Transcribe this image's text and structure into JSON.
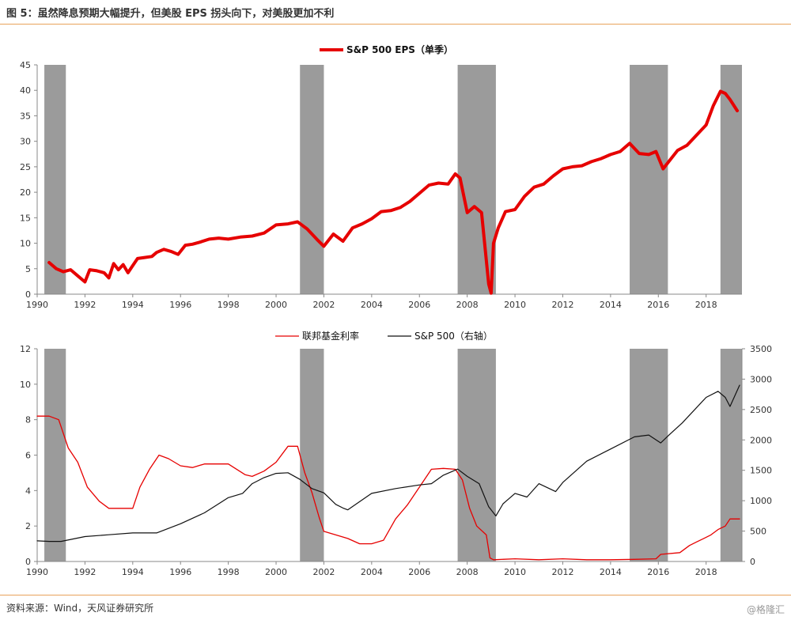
{
  "figure": {
    "title": "图 5：虽然降息预期大幅提升，但美股 EPS 拐头向下，对美股更加不利",
    "source": "资料来源：Wind，天风证券研究所",
    "watermark": "@格隆汇"
  },
  "colors": {
    "red": "#e60000",
    "black": "#111111",
    "shade": "#9b9b9b",
    "rule": "#e8a25a"
  },
  "chart_data": [
    {
      "type": "line",
      "title": "",
      "legend": [
        "S&P 500 EPS（单季）"
      ],
      "legend_position": "top-center",
      "xlim": [
        1990,
        2019.5
      ],
      "ylim": [
        0,
        45
      ],
      "x_ticks": [
        "1990",
        "1992",
        "1994",
        "1996",
        "1998",
        "2000",
        "2002",
        "2004",
        "2006",
        "2008",
        "2010",
        "2012",
        "2014",
        "2016",
        "2018"
      ],
      "y_ticks": [
        "0",
        "5",
        "10",
        "15",
        "20",
        "25",
        "30",
        "35",
        "40",
        "45"
      ],
      "shaded_periods": [
        [
          1990.3,
          1991.2
        ],
        [
          2001.0,
          2002.0
        ],
        [
          2007.6,
          2009.2
        ],
        [
          2014.8,
          2016.4
        ],
        [
          2018.6,
          2019.5
        ]
      ],
      "series": [
        {
          "name": "S&P 500 EPS（单季）",
          "x": [
            1990.5,
            1990.8,
            1991.1,
            1991.4,
            1991.7,
            1992.0,
            1992.2,
            1992.5,
            1992.8,
            1993.0,
            1993.2,
            1993.4,
            1993.6,
            1993.8,
            1994.0,
            1994.2,
            1994.5,
            1994.8,
            1995.0,
            1995.3,
            1995.6,
            1995.9,
            1996.2,
            1996.5,
            1996.8,
            1997.2,
            1997.6,
            1998.0,
            1998.5,
            1999.0,
            1999.5,
            2000.0,
            2000.5,
            2000.9,
            2001.3,
            2001.7,
            2002.0,
            2002.4,
            2002.8,
            2003.2,
            2003.6,
            2004.0,
            2004.4,
            2004.8,
            2005.2,
            2005.6,
            2006.0,
            2006.4,
            2006.8,
            2007.2,
            2007.5,
            2007.7,
            2008.0,
            2008.3,
            2008.6,
            2008.9,
            2009.0,
            2009.1,
            2009.3,
            2009.6,
            2010.0,
            2010.4,
            2010.8,
            2011.2,
            2011.6,
            2012.0,
            2012.4,
            2012.8,
            2013.2,
            2013.6,
            2014.0,
            2014.4,
            2014.8,
            2015.2,
            2015.6,
            2015.9,
            2016.2,
            2016.5,
            2016.8,
            2017.2,
            2017.6,
            2018.0,
            2018.3,
            2018.6,
            2018.8,
            2019.0,
            2019.3
          ],
          "values": [
            6.2,
            5.0,
            4.4,
            4.8,
            3.6,
            2.4,
            4.8,
            4.6,
            4.2,
            3.2,
            6.0,
            4.8,
            5.8,
            4.2,
            5.6,
            7.0,
            7.2,
            7.4,
            8.2,
            8.8,
            8.4,
            7.8,
            9.6,
            9.8,
            10.2,
            10.8,
            11.0,
            10.8,
            11.2,
            11.4,
            12.0,
            13.6,
            13.8,
            14.2,
            12.8,
            10.8,
            9.4,
            11.8,
            10.4,
            13.0,
            13.8,
            14.8,
            16.2,
            16.4,
            17.0,
            18.2,
            19.8,
            21.4,
            21.8,
            21.6,
            23.6,
            22.8,
            16.0,
            17.2,
            16.0,
            2.0,
            0.2,
            10.0,
            13.0,
            16.2,
            16.6,
            19.2,
            21.0,
            21.6,
            23.2,
            24.6,
            25.0,
            25.2,
            26.0,
            26.6,
            27.4,
            28.0,
            29.6,
            27.6,
            27.4,
            28.0,
            24.6,
            26.4,
            28.2,
            29.2,
            31.2,
            33.2,
            37.0,
            39.8,
            39.4,
            38.2,
            36.0
          ]
        }
      ]
    },
    {
      "type": "line",
      "title": "",
      "legend": [
        "联邦基金利率",
        "S&P 500（右轴）"
      ],
      "legend_position": "top-center",
      "xlim": [
        1990,
        2019.5
      ],
      "ylim_left": [
        0,
        12
      ],
      "ylim_right": [
        0,
        3500
      ],
      "x_ticks": [
        "1990",
        "1992",
        "1994",
        "1996",
        "1998",
        "2000",
        "2002",
        "2004",
        "2006",
        "2008",
        "2010",
        "2012",
        "2014",
        "2016",
        "2018"
      ],
      "y_ticks_left": [
        "0",
        "2",
        "4",
        "6",
        "8",
        "10",
        "12"
      ],
      "y_ticks_right": [
        "0",
        "500",
        "1000",
        "1500",
        "2000",
        "2500",
        "3000",
        "3500"
      ],
      "shaded_periods": [
        [
          1990.3,
          1991.2
        ],
        [
          2001.0,
          2002.0
        ],
        [
          2007.6,
          2009.2
        ],
        [
          2014.8,
          2016.4
        ],
        [
          2018.6,
          2019.5
        ]
      ],
      "series": [
        {
          "name": "联邦基金利率",
          "axis": "left",
          "x": [
            1990.0,
            1990.5,
            1990.9,
            1991.3,
            1991.7,
            1992.1,
            1992.6,
            1993.0,
            1993.6,
            1994.0,
            1994.3,
            1994.7,
            1995.1,
            1995.5,
            1996.0,
            1996.5,
            1997.0,
            1997.5,
            1998.0,
            1998.7,
            1999.0,
            1999.5,
            2000.0,
            2000.5,
            2000.9,
            2001.2,
            2001.5,
            2001.8,
            2002.0,
            2003.0,
            2003.5,
            2004.0,
            2004.5,
            2005.0,
            2005.5,
            2006.0,
            2006.5,
            2007.0,
            2007.5,
            2007.8,
            2008.1,
            2008.4,
            2008.8,
            2008.95,
            2009.1,
            2010.0,
            2011.0,
            2012.0,
            2013.0,
            2014.0,
            2015.0,
            2015.9,
            2016.1,
            2016.9,
            2017.3,
            2017.6,
            2017.9,
            2018.2,
            2018.5,
            2018.8,
            2019.0,
            2019.4
          ],
          "values": [
            8.2,
            8.2,
            8.0,
            6.4,
            5.6,
            4.2,
            3.4,
            3.0,
            3.0,
            3.0,
            4.2,
            5.2,
            6.0,
            5.8,
            5.4,
            5.3,
            5.5,
            5.5,
            5.5,
            4.9,
            4.8,
            5.1,
            5.6,
            6.5,
            6.5,
            5.0,
            3.9,
            2.5,
            1.7,
            1.3,
            1.0,
            1.0,
            1.2,
            2.4,
            3.2,
            4.2,
            5.2,
            5.25,
            5.2,
            4.6,
            3.0,
            2.0,
            1.5,
            0.2,
            0.1,
            0.15,
            0.1,
            0.15,
            0.1,
            0.1,
            0.12,
            0.15,
            0.4,
            0.5,
            0.9,
            1.1,
            1.3,
            1.5,
            1.8,
            2.0,
            2.4,
            2.4
          ]
        },
        {
          "name": "S&P 500（右轴）",
          "axis": "right",
          "x": [
            1990.0,
            1990.5,
            1991.0,
            1992.0,
            1993.0,
            1994.0,
            1995.0,
            1996.0,
            1997.0,
            1998.0,
            1998.6,
            1999.0,
            1999.5,
            2000.0,
            2000.5,
            2001.0,
            2001.5,
            2002.0,
            2002.5,
            2002.8,
            2003.0,
            2004.0,
            2005.0,
            2006.0,
            2006.5,
            2007.0,
            2007.6,
            2008.0,
            2008.5,
            2008.9,
            2009.2,
            2009.5,
            2010.0,
            2010.5,
            2011.0,
            2011.7,
            2012.0,
            2013.0,
            2014.0,
            2015.0,
            2015.6,
            2016.1,
            2016.5,
            2017.0,
            2018.0,
            2018.5,
            2018.8,
            2019.0,
            2019.4
          ],
          "values": [
            340,
            330,
            330,
            410,
            440,
            470,
            470,
            620,
            800,
            1050,
            1120,
            1280,
            1380,
            1450,
            1460,
            1350,
            1200,
            1130,
            940,
            880,
            850,
            1120,
            1200,
            1260,
            1280,
            1420,
            1520,
            1400,
            1280,
            900,
            750,
            950,
            1120,
            1060,
            1280,
            1150,
            1300,
            1650,
            1850,
            2050,
            2080,
            1950,
            2100,
            2280,
            2700,
            2800,
            2700,
            2550,
            2900
          ]
        }
      ]
    }
  ]
}
